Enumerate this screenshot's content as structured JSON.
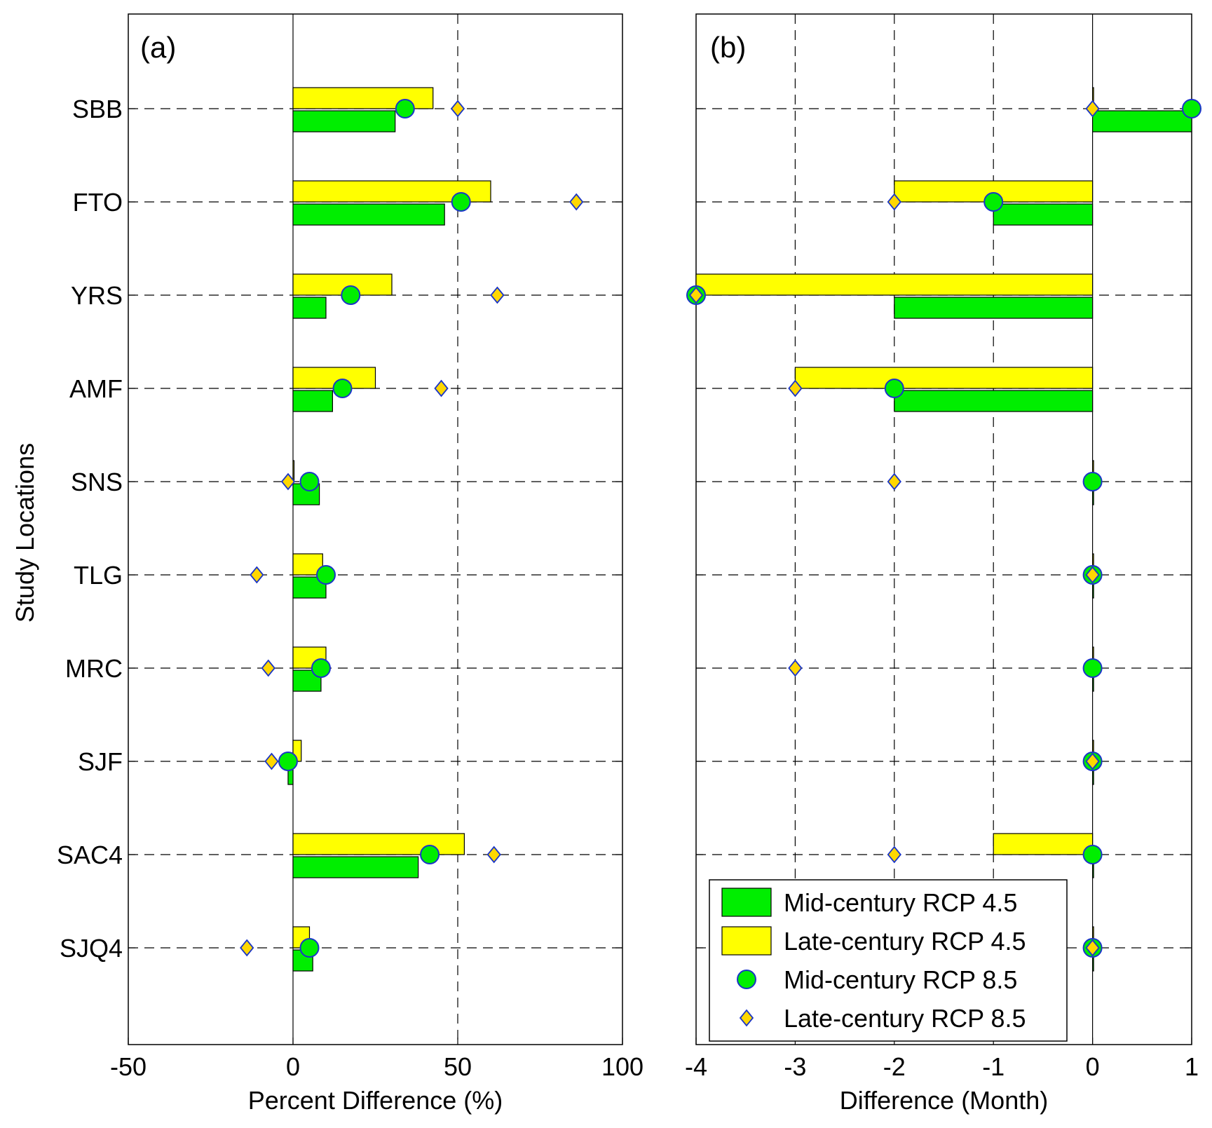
{
  "figure": {
    "ylabel": "Study Locations",
    "legend": {
      "placement": "bottom-right of panel (b)",
      "entries": [
        {
          "label": "Mid-century RCP 4.5",
          "kind": "bar",
          "color": "#00ee00"
        },
        {
          "label": "Late-century RCP 4.5",
          "kind": "bar",
          "color": "#ffff00"
        },
        {
          "label": "Mid-century RCP 8.5",
          "kind": "circle",
          "color": "#00ee00"
        },
        {
          "label": "Late-century RCP 8.5",
          "kind": "diamond",
          "color": "#ffd700"
        }
      ]
    },
    "colors": {
      "mid45": "#00ee00",
      "late45": "#ffff00",
      "mid85": "#00ee00",
      "late85": "#ffd700",
      "marker_edge": "#1a35c8"
    }
  },
  "chart_data": [
    {
      "type": "bar",
      "orientation": "horizontal",
      "panel_label": "(a)",
      "xlabel": "Percent Difference (%)",
      "ylabel": "Study Locations",
      "xlim": [
        -50,
        100
      ],
      "xticks": [
        "-50",
        "0",
        "50",
        "100"
      ],
      "xtick_values": [
        -50,
        0,
        50,
        100
      ],
      "grid": "dashed",
      "categories": [
        "SBB",
        "FTO",
        "YRS",
        "AMF",
        "SNS",
        "TLG",
        "MRC",
        "SJF",
        "SAC4",
        "SJQ4"
      ],
      "series": [
        {
          "name": "Mid-century RCP 4.5",
          "kind": "bar",
          "values": [
            31,
            46,
            10,
            12,
            8,
            10,
            8.5,
            -1.5,
            38,
            6
          ]
        },
        {
          "name": "Late-century RCP 4.5",
          "kind": "bar",
          "values": [
            42.5,
            60,
            30,
            25,
            0,
            9,
            10,
            2.5,
            52,
            5
          ]
        },
        {
          "name": "Mid-century RCP 8.5",
          "kind": "circle",
          "values": [
            34,
            51,
            17.5,
            15,
            5,
            10,
            8.5,
            -1.5,
            41.5,
            5
          ]
        },
        {
          "name": "Late-century RCP 8.5",
          "kind": "diamond",
          "values": [
            50,
            86,
            62,
            45,
            -1.5,
            -11,
            -7.5,
            -6.5,
            61,
            -14
          ]
        }
      ]
    },
    {
      "type": "bar",
      "orientation": "horizontal",
      "panel_label": "(b)",
      "xlabel": "Difference (Month)",
      "xlim": [
        -4,
        1
      ],
      "xticks": [
        "-4",
        "-3",
        "-2",
        "-1",
        "0",
        "1"
      ],
      "xtick_values": [
        -4,
        -3,
        -2,
        -1,
        0,
        1
      ],
      "grid": "dashed",
      "categories": [
        "SBB",
        "FTO",
        "YRS",
        "AMF",
        "SNS",
        "TLG",
        "MRC",
        "SJF",
        "SAC4",
        "SJQ4"
      ],
      "series": [
        {
          "name": "Mid-century RCP 4.5",
          "kind": "bar",
          "values": [
            1,
            -1,
            -2,
            -2,
            0,
            0,
            0,
            0,
            0,
            0
          ]
        },
        {
          "name": "Late-century RCP 4.5",
          "kind": "bar",
          "values": [
            0,
            -2,
            -4,
            -3,
            0,
            0,
            0,
            0,
            -1,
            0
          ]
        },
        {
          "name": "Mid-century RCP 8.5",
          "kind": "circle",
          "values": [
            1,
            -1,
            -4,
            -2,
            0,
            0,
            0,
            0,
            0,
            0
          ]
        },
        {
          "name": "Late-century RCP 8.5",
          "kind": "diamond",
          "values": [
            0,
            -2,
            -4,
            -3,
            -2,
            0,
            -3,
            0,
            -2,
            0
          ]
        }
      ]
    }
  ]
}
